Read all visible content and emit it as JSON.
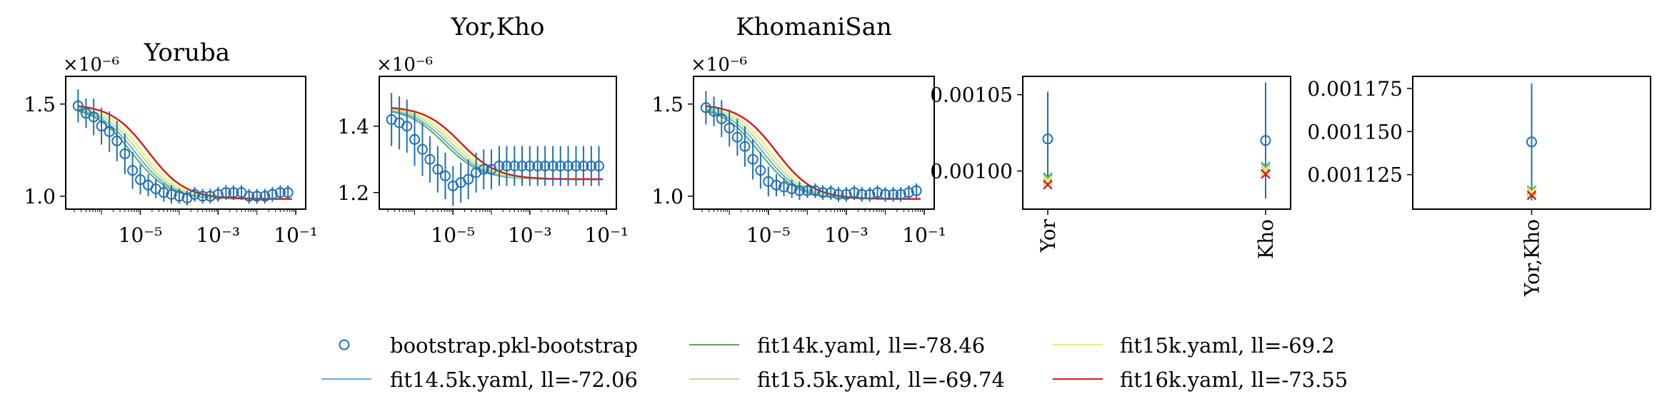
{
  "colors": {
    "bootstrap": "#1f6fb4",
    "fit14k": "#4daf5a",
    "fit14_5k": "#6aaed6",
    "fit15k": "#f2ec5a",
    "fit15_5k": "#c3dc94",
    "fit16k": "#d7191c"
  },
  "legend": [
    {
      "key": "bootstrap",
      "label": "bootstrap.pkl-bootstrap",
      "marker": "circle"
    },
    {
      "key": "fit14_5k",
      "label": "fit14.5k.yaml, ll=-72.06",
      "marker": "line"
    },
    {
      "key": "fit14k",
      "label": "fit14k.yaml, ll=-78.46",
      "marker": "line"
    },
    {
      "key": "fit15_5k",
      "label": "fit15.5k.yaml, ll=-69.74",
      "marker": "line"
    },
    {
      "key": "fit15k",
      "label": "fit15k.yaml, ll=-69.2",
      "marker": "line"
    },
    {
      "key": "fit16k",
      "label": "fit16k.yaml, ll=-73.55",
      "marker": "line"
    }
  ],
  "chart_data": [
    {
      "type": "line",
      "title": "Yoruba",
      "multiplier": "×10⁻⁶",
      "xscale": "log",
      "xlim": [
        1.2e-07,
        0.18
      ],
      "ylim": [
        0.93,
        1.65
      ],
      "xticks": [
        1e-05,
        0.001,
        0.1
      ],
      "xtick_labels": [
        "10⁻⁵",
        "10⁻³",
        "10⁻¹"
      ],
      "yticks": [
        1.0,
        1.5
      ],
      "ytick_labels": [
        "1.0",
        "1.5"
      ],
      "x": [
        2.5e-07,
        4e-07,
        6.3e-07,
        1e-06,
        1.6e-06,
        2.5e-06,
        4e-06,
        6.3e-06,
        1e-05,
        1.6e-05,
        2.5e-05,
        4e-05,
        6.3e-05,
        0.0001,
        0.00016,
        0.00025,
        0.0004,
        0.00063,
        0.001,
        0.0016,
        0.0025,
        0.004,
        0.0063,
        0.01,
        0.016,
        0.025,
        0.04,
        0.063
      ],
      "bootstrap": {
        "values": [
          1.49,
          1.45,
          1.43,
          1.38,
          1.35,
          1.3,
          1.23,
          1.14,
          1.09,
          1.06,
          1.04,
          1.02,
          1.01,
          1.0,
          0.99,
          1.01,
          1.0,
          1.0,
          1.01,
          1.02,
          1.02,
          1.02,
          1.0,
          1.0,
          1.0,
          1.01,
          1.02,
          1.02
        ],
        "errors": [
          0.09,
          0.08,
          0.1,
          0.1,
          0.11,
          0.11,
          0.11,
          0.1,
          0.08,
          0.06,
          0.05,
          0.05,
          0.05,
          0.04,
          0.04,
          0.04,
          0.04,
          0.04,
          0.04,
          0.04,
          0.04,
          0.04,
          0.04,
          0.04,
          0.04,
          0.04,
          0.04,
          0.04
        ]
      },
      "model": {
        "base": 0.985,
        "start": 1.5,
        "x_start": 2.5e-07,
        "x_end": 0.08
      }
    },
    {
      "type": "line",
      "title": "Yor,Kho",
      "multiplier": "×10⁻⁶",
      "xscale": "log",
      "xlim": [
        1.2e-07,
        0.18
      ],
      "ylim": [
        1.15,
        1.55
      ],
      "xticks": [
        1e-05,
        0.001,
        0.1
      ],
      "xtick_labels": [
        "10⁻⁵",
        "10⁻³",
        "10⁻¹"
      ],
      "yticks": [
        1.2,
        1.4
      ],
      "ytick_labels": [
        "1.2",
        "1.4"
      ],
      "x": [
        2.5e-07,
        4e-07,
        6.3e-07,
        1e-06,
        1.6e-06,
        2.5e-06,
        4e-06,
        6.3e-06,
        1e-05,
        1.6e-05,
        2.5e-05,
        4e-05,
        6.3e-05,
        0.0001,
        0.00016,
        0.00025,
        0.0004,
        0.00063,
        0.001,
        0.0016,
        0.0025,
        0.004,
        0.0063,
        0.01,
        0.016,
        0.025,
        0.04,
        0.063
      ],
      "bootstrap": {
        "values": [
          1.42,
          1.41,
          1.4,
          1.36,
          1.33,
          1.3,
          1.27,
          1.25,
          1.22,
          1.23,
          1.24,
          1.26,
          1.27,
          1.27,
          1.28,
          1.28,
          1.28,
          1.28,
          1.28,
          1.28,
          1.28,
          1.28,
          1.28,
          1.28,
          1.28,
          1.28,
          1.28,
          1.28
        ],
        "errors": [
          0.08,
          0.08,
          0.08,
          0.08,
          0.08,
          0.07,
          0.07,
          0.07,
          0.06,
          0.06,
          0.06,
          0.06,
          0.06,
          0.06,
          0.06,
          0.06,
          0.06,
          0.06,
          0.06,
          0.06,
          0.06,
          0.06,
          0.06,
          0.06,
          0.06,
          0.06,
          0.06,
          0.06
        ]
      },
      "model": {
        "base": 1.24,
        "start": 1.46,
        "x_start": 2.5e-07,
        "x_end": 0.08
      }
    },
    {
      "type": "line",
      "title": "KhomaniSan",
      "multiplier": "×10⁻⁶",
      "xscale": "log",
      "xlim": [
        1.2e-07,
        0.18
      ],
      "ylim": [
        0.93,
        1.65
      ],
      "xticks": [
        1e-05,
        0.001,
        0.1
      ],
      "xtick_labels": [
        "10⁻⁵",
        "10⁻³",
        "10⁻¹"
      ],
      "yticks": [
        1.0,
        1.5
      ],
      "ytick_labels": [
        "1.0",
        "1.5"
      ],
      "x": [
        2.5e-07,
        4e-07,
        6.3e-07,
        1e-06,
        1.6e-06,
        2.5e-06,
        4e-06,
        6.3e-06,
        1e-05,
        1.6e-05,
        2.5e-05,
        4e-05,
        6.3e-05,
        0.0001,
        0.00016,
        0.00025,
        0.0004,
        0.00063,
        0.001,
        0.0016,
        0.0025,
        0.004,
        0.0063,
        0.01,
        0.016,
        0.025,
        0.04,
        0.063
      ],
      "bootstrap": {
        "values": [
          1.48,
          1.46,
          1.42,
          1.37,
          1.32,
          1.27,
          1.2,
          1.14,
          1.08,
          1.06,
          1.05,
          1.04,
          1.03,
          1.03,
          1.03,
          1.02,
          1.02,
          1.01,
          1.01,
          1.02,
          1.01,
          1.01,
          1.02,
          1.01,
          1.01,
          1.01,
          1.02,
          1.03
        ],
        "errors": [
          0.09,
          0.08,
          0.1,
          0.1,
          0.1,
          0.11,
          0.11,
          0.1,
          0.08,
          0.06,
          0.05,
          0.05,
          0.05,
          0.04,
          0.04,
          0.04,
          0.04,
          0.04,
          0.04,
          0.04,
          0.04,
          0.04,
          0.04,
          0.04,
          0.04,
          0.04,
          0.04,
          0.04
        ]
      },
      "model": {
        "base": 0.985,
        "start": 1.5,
        "x_start": 2.5e-07,
        "x_end": 0.08
      }
    },
    {
      "type": "scatter",
      "categories": [
        "Yor",
        "Kho"
      ],
      "ylim": [
        0.000975,
        0.001062
      ],
      "yticks": [
        0.001,
        0.00105
      ],
      "ytick_labels": [
        "0.00100",
        "0.00105"
      ],
      "bootstrap": {
        "values": [
          0.001021,
          0.00102
        ],
        "errors": [
          3.1e-05,
          3.8e-05
        ]
      },
      "fits": {
        "fit14k": [
          0.000996,
          0.001003
        ],
        "fit14_5k": [
          0.000995,
          0.001002
        ],
        "fit15k": [
          0.000994,
          0.001001
        ],
        "fit15_5k": [
          0.000993,
          0.001
        ],
        "fit16k": [
          0.000991,
          0.000998
        ]
      }
    },
    {
      "type": "scatter",
      "categories": [
        "Yor,Kho"
      ],
      "ylim": [
        0.001105,
        0.001182
      ],
      "yticks": [
        0.001125,
        0.00115,
        0.001175
      ],
      "ytick_labels": [
        "0.001125",
        "0.001150",
        "0.001175"
      ],
      "bootstrap": {
        "values": [
          0.001144
        ],
        "errors": [
          3.4e-05
        ]
      },
      "fits": {
        "fit14k": [
          0.001116
        ],
        "fit14_5k": [
          0.001115
        ],
        "fit15k": [
          0.001115
        ],
        "fit15_5k": [
          0.001114
        ],
        "fit16k": [
          0.001113
        ]
      }
    }
  ]
}
